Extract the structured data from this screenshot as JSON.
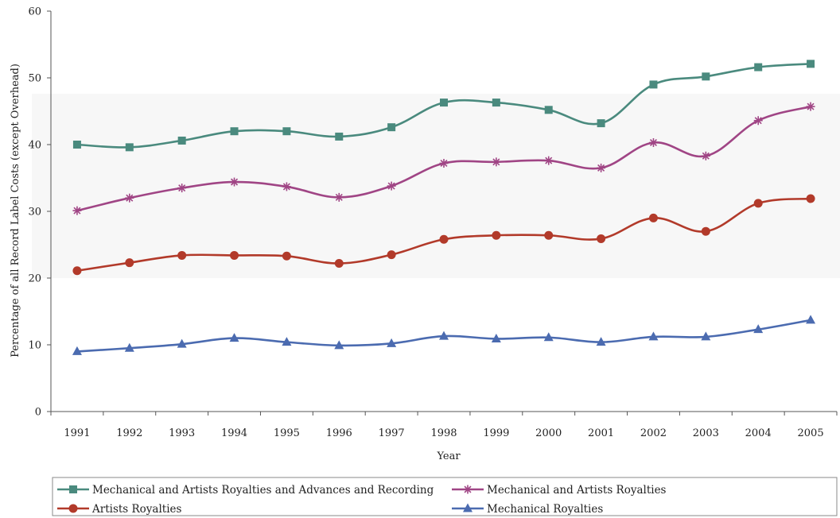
{
  "chart_data": {
    "type": "line",
    "x": [
      "1991",
      "1992",
      "1993",
      "1994",
      "1995",
      "1996",
      "1997",
      "1998",
      "1999",
      "2000",
      "2001",
      "2002",
      "2003",
      "2004",
      "2005"
    ],
    "xlabel": "Year",
    "ylabel": "Percentage of all Record Label Costs (except Overhead)",
    "ylim": [
      0,
      60
    ],
    "yticks": [
      0,
      10,
      20,
      30,
      40,
      50,
      60
    ],
    "grid": false,
    "legend_position": "bottom",
    "series": [
      {
        "name": "Mechanical and Artists Royalties and Advances and Recording",
        "color": "#4a8a7e",
        "marker": "square",
        "values": [
          40.0,
          39.6,
          40.6,
          42.0,
          42.0,
          41.2,
          42.6,
          46.3,
          46.3,
          45.2,
          43.2,
          49.0,
          50.2,
          51.6,
          52.1
        ]
      },
      {
        "name": "Mechanical and Artists Royalties",
        "color": "#a04585",
        "marker": "star",
        "values": [
          30.1,
          32.0,
          33.5,
          34.4,
          33.7,
          32.1,
          33.8,
          37.2,
          37.4,
          37.6,
          36.5,
          40.3,
          38.3,
          43.6,
          45.7
        ]
      },
      {
        "name": "Artists Royalties",
        "color": "#b23a2a",
        "marker": "circle",
        "values": [
          21.1,
          22.3,
          23.4,
          23.4,
          23.3,
          22.2,
          23.5,
          25.8,
          26.4,
          26.4,
          25.9,
          29.0,
          27.0,
          31.2,
          31.9
        ]
      },
      {
        "name": "Mechanical Royalties",
        "color": "#4b6bb0",
        "marker": "triangle",
        "values": [
          9.0,
          9.5,
          10.1,
          11.0,
          10.4,
          9.9,
          10.2,
          11.3,
          10.9,
          11.1,
          10.4,
          11.2,
          11.2,
          12.3,
          13.7
        ]
      }
    ]
  }
}
